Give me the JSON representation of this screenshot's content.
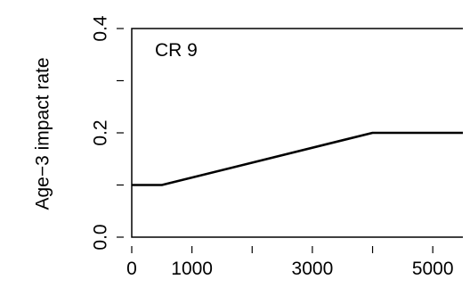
{
  "chart_data": {
    "type": "line",
    "panel_label": "CR 9",
    "xlabel": "",
    "ylabel": "Age−3 impact rate",
    "xlim": [
      0,
      5500
    ],
    "ylim": [
      0,
      0.4
    ],
    "x_ticks": [
      0,
      1000,
      2000,
      3000,
      4000,
      5000
    ],
    "x_tick_labels": [
      "0",
      "1000",
      "",
      "3000",
      "",
      "5000"
    ],
    "y_ticks": [
      0.0,
      0.1,
      0.2,
      0.3,
      0.4
    ],
    "y_tick_labels": [
      "0.0",
      "",
      "0.2",
      "",
      "0.4"
    ],
    "grid": false,
    "series": [
      {
        "x": [
          0,
          500,
          4000,
          5500
        ],
        "y": [
          0.1,
          0.1,
          0.2,
          0.2
        ]
      }
    ],
    "colors": {
      "line": "#000000",
      "axis": "#000000"
    }
  }
}
